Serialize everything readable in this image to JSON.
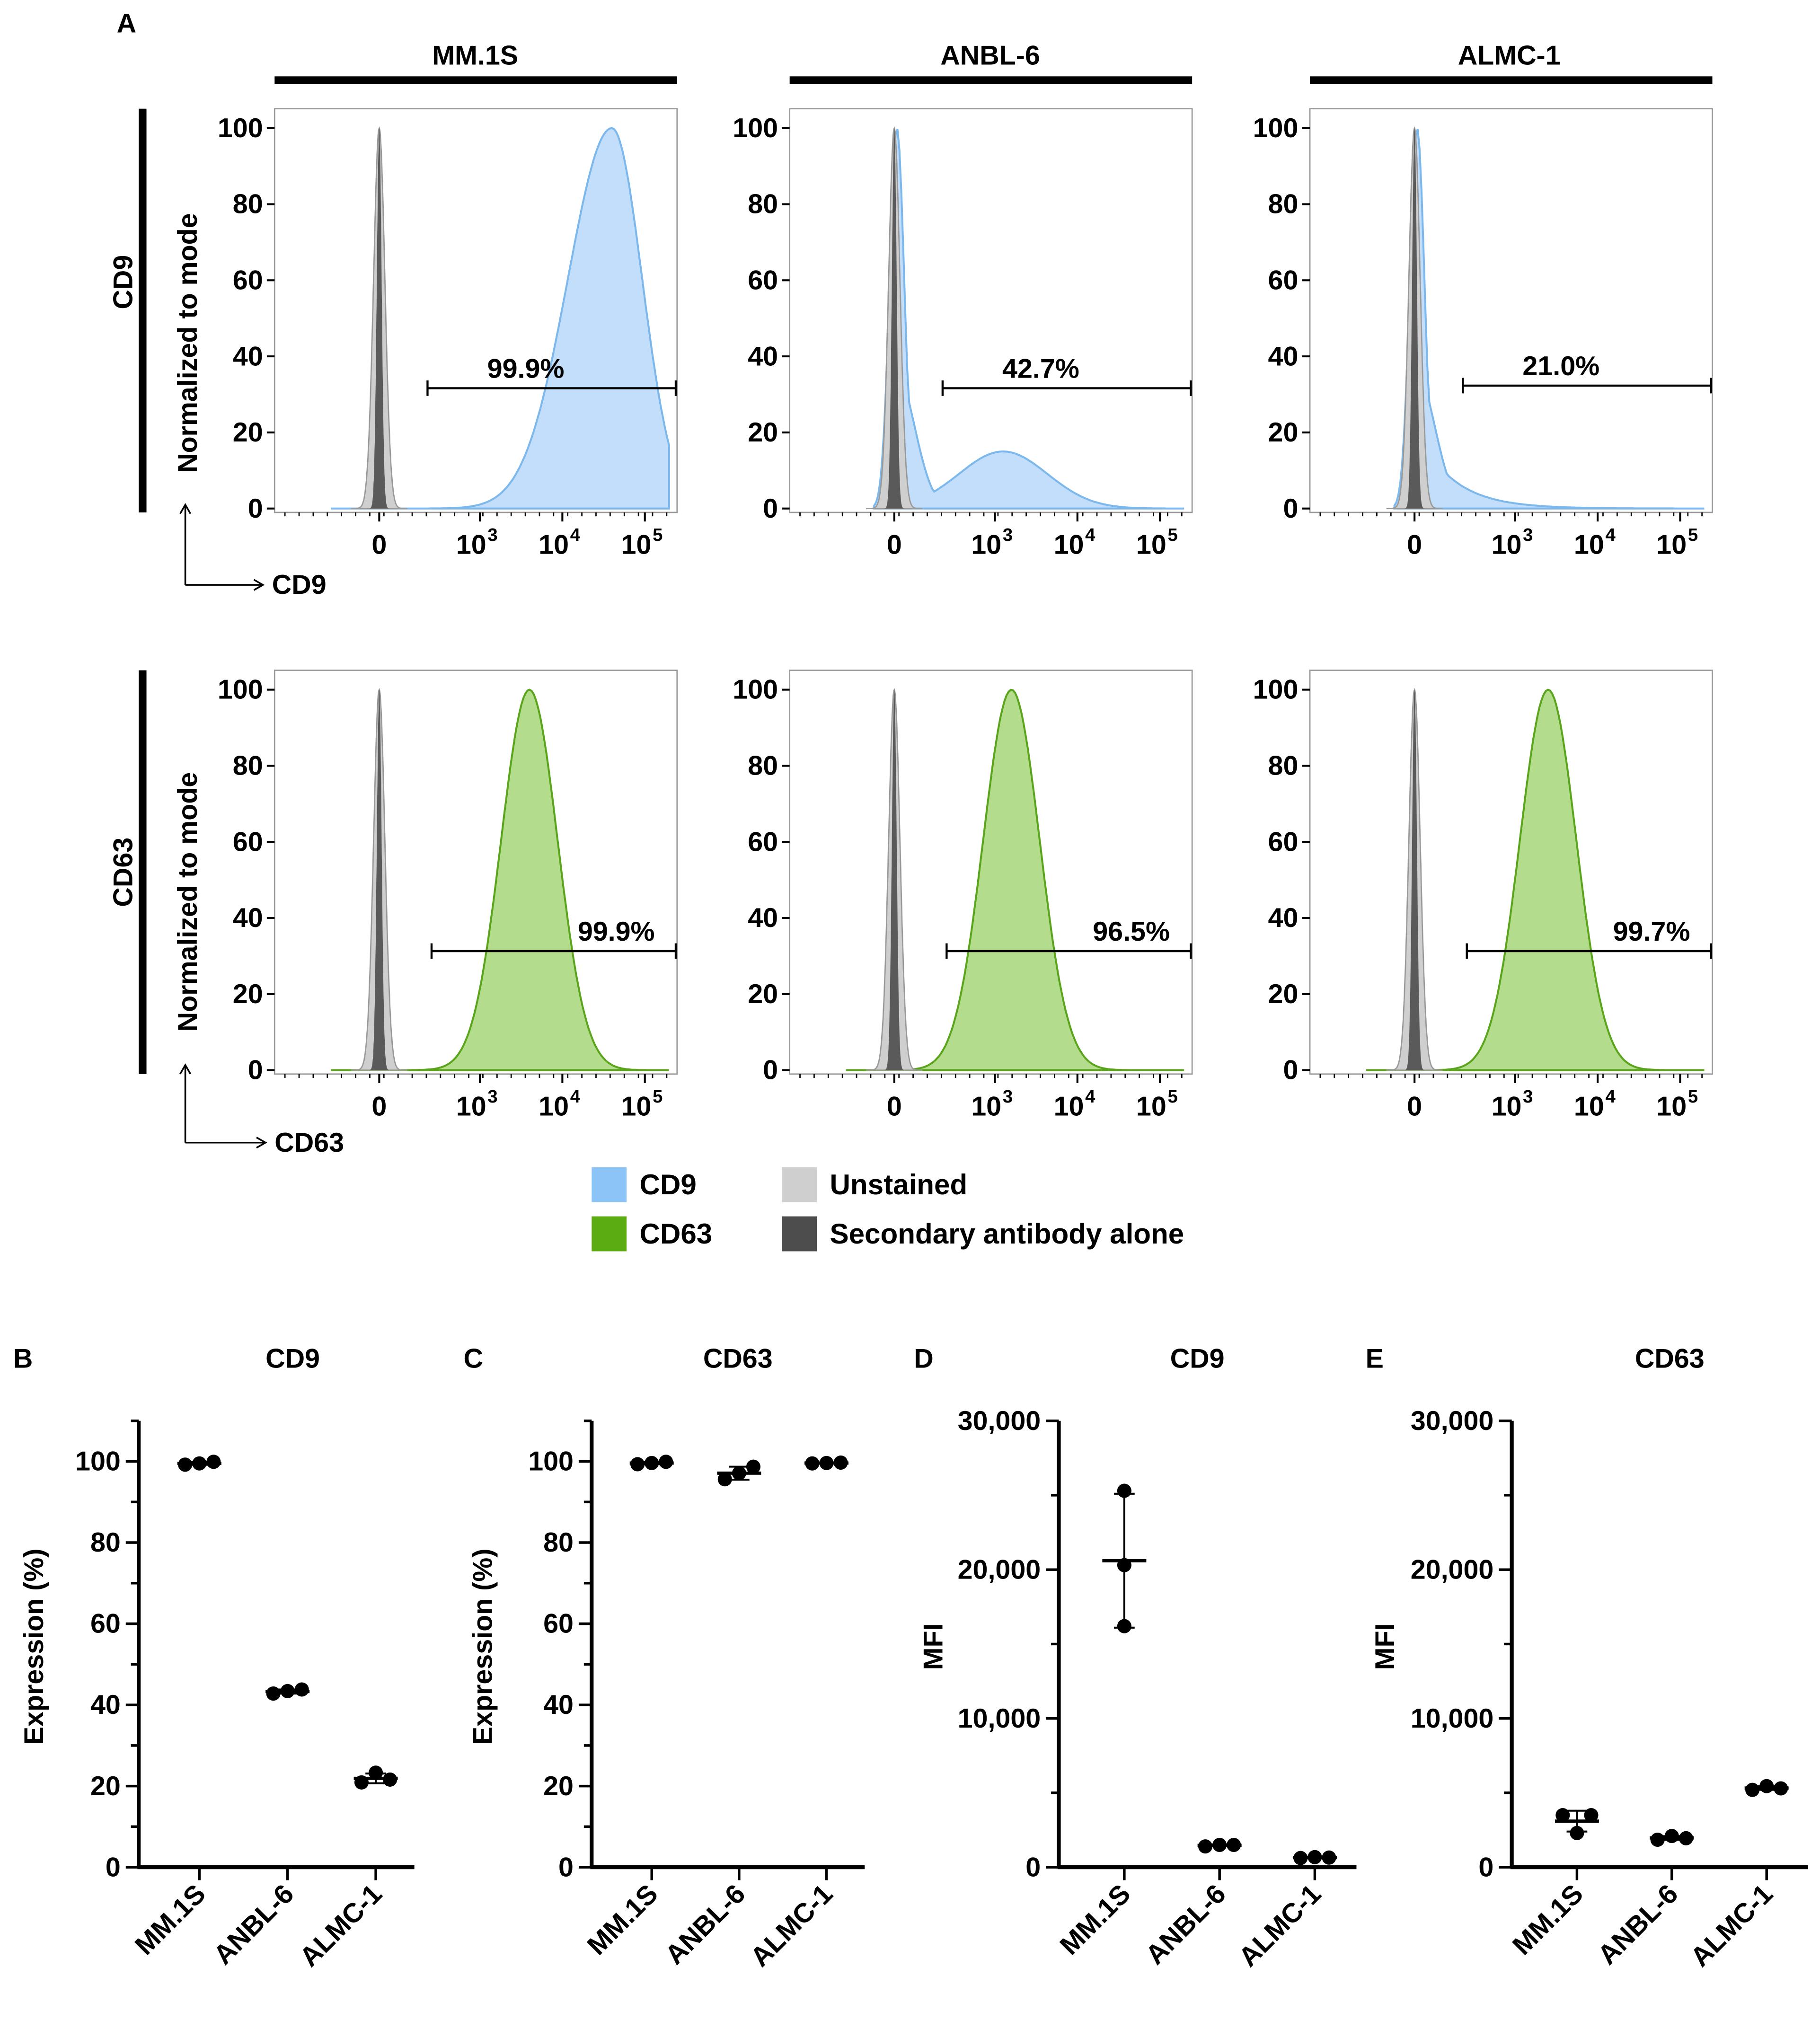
{
  "figure": {
    "panel_a_label": "A",
    "cell_lines": [
      "MM.1S",
      "ANBL-6",
      "ALMC-1"
    ],
    "row_markers": [
      "CD9",
      "CD63"
    ],
    "y_axis_label": "Normalized to mode",
    "x_axis_labels": [
      "CD9",
      "CD63"
    ],
    "y_ticks": [
      "0",
      "20",
      "40",
      "60",
      "80",
      "100"
    ],
    "x_ticks": [
      {
        "base": "0",
        "exp": ""
      },
      {
        "base": "10",
        "exp": "3"
      },
      {
        "base": "10",
        "exp": "4"
      },
      {
        "base": "10",
        "exp": "5"
      }
    ],
    "gate_percentages": [
      [
        "99.9%",
        "42.7%",
        "21.0%"
      ],
      [
        "99.9%",
        "96.5%",
        "99.7%"
      ]
    ]
  },
  "legend": {
    "items": [
      {
        "label": "CD9",
        "color": "#8cc4f8"
      },
      {
        "label": "CD63",
        "color": "#5bac12"
      },
      {
        "label": "Unstained",
        "color": "#cfcfcf"
      },
      {
        "label": "Secondary antibody alone",
        "color": "#4d4d4d"
      }
    ]
  },
  "colors": {
    "cd9_fill": "#c2defa",
    "cd9_line": "#7db8ec",
    "cd63_fill": "#b3dc8d",
    "cd63_line": "#5aa51b",
    "unstained_fill": "#cfcfcf",
    "secondary_fill": "#5a5a5a"
  },
  "chart_data": [
    {
      "type": "histogram",
      "panel": "A",
      "title": "MM.1S / CD9",
      "xlabel": "CD9",
      "ylabel": "Normalized to mode",
      "ylim": [
        0,
        100
      ],
      "x_scale": "biexponential",
      "x_ticks": [
        "0",
        "10^3",
        "10^4",
        "10^5"
      ],
      "stained_peak_log10": 4.6,
      "stained_peak_height": 100,
      "gate_label": "99.9%",
      "controls": [
        "Unstained",
        "Secondary antibody alone"
      ]
    },
    {
      "type": "histogram",
      "panel": "A",
      "title": "ANBL-6 / CD9",
      "xlabel": "CD9",
      "ylabel": "Normalized to mode",
      "ylim": [
        0,
        100
      ],
      "x_scale": "biexponential",
      "x_ticks": [
        "0",
        "10^3",
        "10^4",
        "10^5"
      ],
      "stained_peak_log10": 0,
      "stained_peak_height": 100,
      "shoulder_log10": 3.1,
      "shoulder_height": 15,
      "gate_label": "42.7%",
      "controls": [
        "Unstained",
        "Secondary antibody alone"
      ]
    },
    {
      "type": "histogram",
      "panel": "A",
      "title": "ALMC-1 / CD9",
      "xlabel": "CD9",
      "ylabel": "Normalized to mode",
      "ylim": [
        0,
        100
      ],
      "x_scale": "biexponential",
      "x_ticks": [
        "0",
        "10^3",
        "10^4",
        "10^5"
      ],
      "stained_peak_log10": 0,
      "stained_peak_height": 100,
      "gate_label": "21.0%",
      "controls": [
        "Unstained",
        "Secondary antibody alone"
      ]
    },
    {
      "type": "histogram",
      "panel": "A",
      "title": "MM.1S / CD63",
      "xlabel": "CD63",
      "ylabel": "Normalized to mode",
      "ylim": [
        0,
        100
      ],
      "x_scale": "biexponential",
      "x_ticks": [
        "0",
        "10^3",
        "10^4",
        "10^5"
      ],
      "stained_peak_log10": 3.6,
      "stained_peak_height": 100,
      "gate_label": "99.9%",
      "controls": [
        "Unstained",
        "Secondary antibody alone"
      ]
    },
    {
      "type": "histogram",
      "panel": "A",
      "title": "ANBL-6 / CD63",
      "xlabel": "CD63",
      "ylabel": "Normalized to mode",
      "ylim": [
        0,
        100
      ],
      "x_scale": "biexponential",
      "x_ticks": [
        "0",
        "10^3",
        "10^4",
        "10^5"
      ],
      "stained_peak_log10": 3.2,
      "stained_peak_height": 100,
      "gate_label": "96.5%",
      "controls": [
        "Unstained",
        "Secondary antibody alone"
      ]
    },
    {
      "type": "histogram",
      "panel": "A",
      "title": "ALMC-1 / CD63",
      "xlabel": "CD63",
      "ylabel": "Normalized to mode",
      "ylim": [
        0,
        100
      ],
      "x_scale": "biexponential",
      "x_ticks": [
        "0",
        "10^3",
        "10^4",
        "10^5"
      ],
      "stained_peak_log10": 3.4,
      "stained_peak_height": 100,
      "gate_label": "99.7%",
      "controls": [
        "Unstained",
        "Secondary antibody alone"
      ]
    },
    {
      "type": "scatter",
      "panel": "B",
      "title": "CD9",
      "ylabel": "Expression (%)",
      "ylim": [
        0,
        110
      ],
      "yticks": [
        "0",
        "20",
        "40",
        "60",
        "80",
        "100"
      ],
      "categories": [
        "MM.1S",
        "ANBL-6",
        "ALMC-1"
      ],
      "points": [
        [
          99.2,
          99.5,
          99.9
        ],
        [
          42.8,
          43.4,
          43.8
        ],
        [
          20.9,
          23.3,
          21.6
        ]
      ],
      "mean": [
        99.5,
        43.3,
        21.9
      ],
      "sd": [
        0.35,
        0.5,
        1.2
      ]
    },
    {
      "type": "scatter",
      "panel": "C",
      "title": "CD63",
      "ylabel": "Expression (%)",
      "ylim": [
        0,
        110
      ],
      "yticks": [
        "0",
        "20",
        "40",
        "60",
        "80",
        "100"
      ],
      "categories": [
        "MM.1S",
        "ANBL-6",
        "ALMC-1"
      ],
      "points": [
        [
          99.3,
          99.6,
          99.9
        ],
        [
          95.6,
          97.1,
          98.7
        ],
        [
          99.5,
          99.6,
          99.7
        ]
      ],
      "mean": [
        99.6,
        97.1,
        99.6
      ],
      "sd": [
        0.3,
        1.6,
        0.1
      ]
    },
    {
      "type": "scatter",
      "panel": "D",
      "title": "CD9",
      "ylabel": "MFI",
      "ylim": [
        0,
        30000
      ],
      "yticks": [
        "0",
        "10,000",
        "20,000",
        "30,000"
      ],
      "categories": [
        "MM.1S",
        "ANBL-6",
        "ALMC-1"
      ],
      "points": [
        [
          25300,
          20300,
          16200
        ],
        [
          1400,
          1500,
          1500
        ],
        [
          620,
          680,
          650
        ]
      ],
      "mean": [
        20600,
        1470,
        650
      ],
      "sd": [
        4500,
        60,
        30
      ]
    },
    {
      "type": "scatter",
      "panel": "E",
      "title": "CD63",
      "ylabel": "MFI",
      "ylim": [
        0,
        30000
      ],
      "yticks": [
        "0",
        "10,000",
        "20,000",
        "30,000"
      ],
      "categories": [
        "MM.1S",
        "ANBL-6",
        "ALMC-1"
      ],
      "points": [
        [
          3500,
          2300,
          3500
        ],
        [
          1850,
          2100,
          1950
        ],
        [
          5200,
          5450,
          5300
        ]
      ],
      "mean": [
        3100,
        1970,
        5320
      ],
      "sd": [
        700,
        120,
        120
      ]
    }
  ]
}
